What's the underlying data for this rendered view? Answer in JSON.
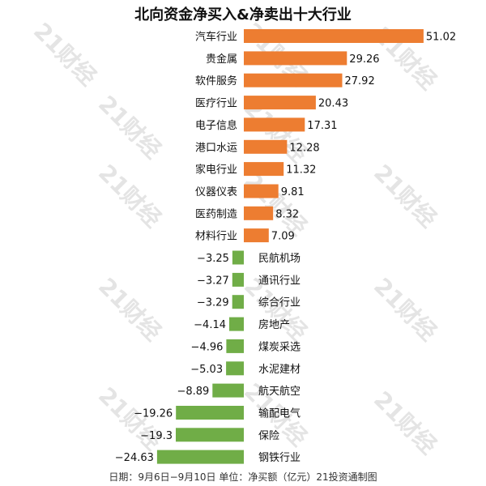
{
  "chart_data": {
    "type": "bar",
    "orientation": "horizontal",
    "title": "北向资金净买入&净卖出十大行业",
    "categories": [
      "汽车行业",
      "贵金属",
      "软件服务",
      "医疗行业",
      "电子信息",
      "港口水运",
      "家电行业",
      "仪器仪表",
      "医药制造",
      "材料行业",
      "民航机场",
      "通讯行业",
      "综合行业",
      "房地产",
      "煤炭采选",
      "水泥建材",
      "航天航空",
      "输配电气",
      "保险",
      "钢铁行业"
    ],
    "values": [
      51.02,
      29.26,
      27.92,
      20.43,
      17.31,
      12.28,
      11.32,
      9.81,
      8.32,
      7.09,
      -3.25,
      -3.27,
      -3.29,
      -4.14,
      -4.96,
      -5.03,
      -8.89,
      -19.26,
      -19.3,
      -24.63
    ],
    "value_labels": [
      "51.02",
      "29.26",
      "27.92",
      "20.43",
      "17.31",
      "12.28",
      "11.32",
      "9.81",
      "8.32",
      "7.09",
      "−3.25",
      "−3.27",
      "−3.29",
      "−4.14",
      "−4.96",
      "−5.03",
      "−8.89",
      "−19.26",
      "−19.3",
      "−24.63"
    ],
    "colors": {
      "positive": "#ED7D31",
      "negative": "#70AD47"
    },
    "grid": false,
    "legend": "none",
    "footnote": "日期：9月6日−9月10日 单位：净买额（亿元）21投资通制图",
    "watermark": "21财经"
  }
}
